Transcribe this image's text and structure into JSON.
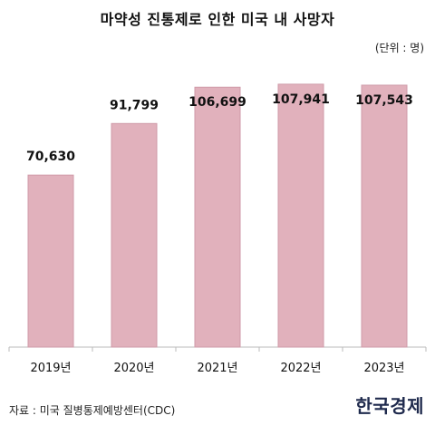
{
  "chart_data": {
    "type": "bar",
    "title": "마약성 진통제로 인한 미국 내 사망자",
    "unit_note": "(단위 : 명)",
    "categories": [
      "2019년",
      "2020년",
      "2021년",
      "2022년",
      "2023년"
    ],
    "values": [
      70630,
      91799,
      106699,
      107941,
      107543
    ],
    "value_labels": [
      "70,630",
      "91,799",
      "106,699",
      "107,941",
      "107,543"
    ],
    "ylim": [
      0,
      112000
    ],
    "grid": false,
    "bar_color": "#e1b1bc",
    "bar_edge_color": "#cf9aa8",
    "axis_color": "#bbbbbb"
  },
  "source_text": "자료 : 미국 질병통제예방센터(CDC)",
  "brand": "한국경제"
}
